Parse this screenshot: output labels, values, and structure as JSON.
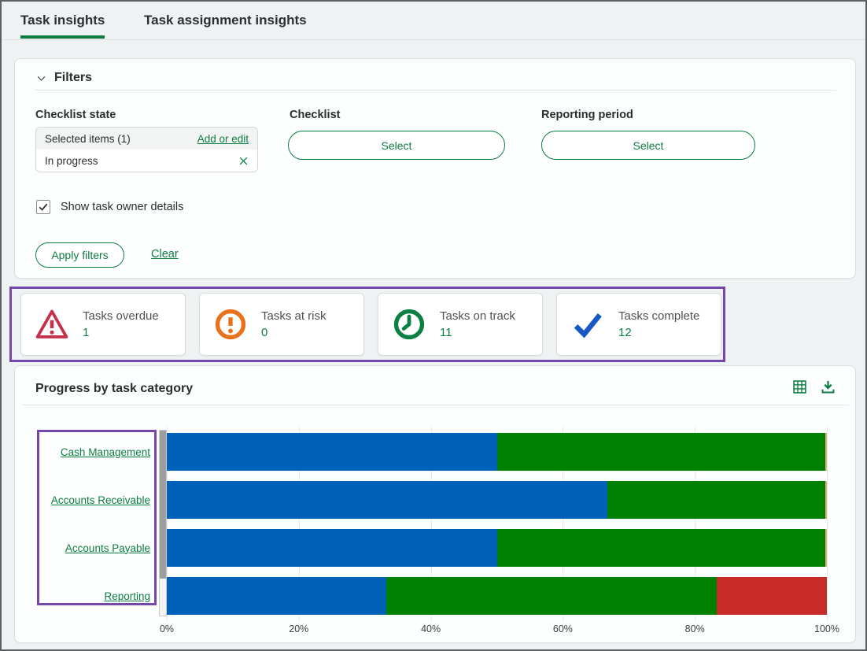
{
  "tabs": {
    "items": [
      {
        "label": "Task insights"
      },
      {
        "label": "Task assignment insights"
      }
    ],
    "active_index": 0
  },
  "filters": {
    "title": "Filters",
    "checklist_state_label": "Checklist state",
    "selected_items_summary": "Selected items (1)",
    "add_or_edit_link": "Add or edit",
    "selected_item": "In progress",
    "checklist_label": "Checklist",
    "checklist_select": "Select",
    "reporting_period_label": "Reporting period",
    "reporting_period_select": "Select",
    "show_owner_label": "Show task owner details",
    "show_owner_checked": true,
    "apply_button": "Apply filters",
    "clear_link": "Clear"
  },
  "kpis": {
    "cards": [
      {
        "label": "Tasks overdue",
        "value": "1",
        "icon": "warning-triangle-icon",
        "icon_color": "#c4314b"
      },
      {
        "label": "Tasks at risk",
        "value": "0",
        "icon": "alert-circle-icon",
        "icon_color": "#e8711c"
      },
      {
        "label": "Tasks on track",
        "value": "11",
        "icon": "clock-icon",
        "icon_color": "#0b8043"
      },
      {
        "label": "Tasks complete",
        "value": "12",
        "icon": "check-icon",
        "icon_color": "#1659c6"
      }
    ]
  },
  "chart": {
    "title": "Progress by task category",
    "toolbar_icons": [
      "table-view-icon",
      "download-icon"
    ]
  },
  "chart_data": {
    "type": "bar",
    "orientation": "horizontal",
    "stacked": true,
    "title": "Progress by task category",
    "categories": [
      "Cash Management",
      "Accounts Receivable",
      "Accounts Payable",
      "Reporting"
    ],
    "series": [
      {
        "name": "blue",
        "color": "#0061b8",
        "values": [
          50.0,
          66.7,
          50.0,
          33.3
        ]
      },
      {
        "name": "green",
        "color": "#008000",
        "values": [
          50.0,
          33.3,
          50.0,
          50.0
        ]
      },
      {
        "name": "red",
        "color": "#c62b27",
        "values": [
          0.0,
          0.0,
          0.0,
          16.7
        ]
      }
    ],
    "x_tick_labels": [
      "0%",
      "20%",
      "40%",
      "60%",
      "80%",
      "100%"
    ],
    "xlim": [
      0,
      100
    ],
    "grid": true,
    "legend": "none"
  },
  "colors": {
    "brand_green": "#0d7c41",
    "tab_underline": "#0b7d3e",
    "annotation_purple": "#7547ad",
    "bar_blue": "#0061b8",
    "bar_green": "#008000",
    "bar_red": "#c62b27",
    "page_background": "#eef2f3"
  }
}
